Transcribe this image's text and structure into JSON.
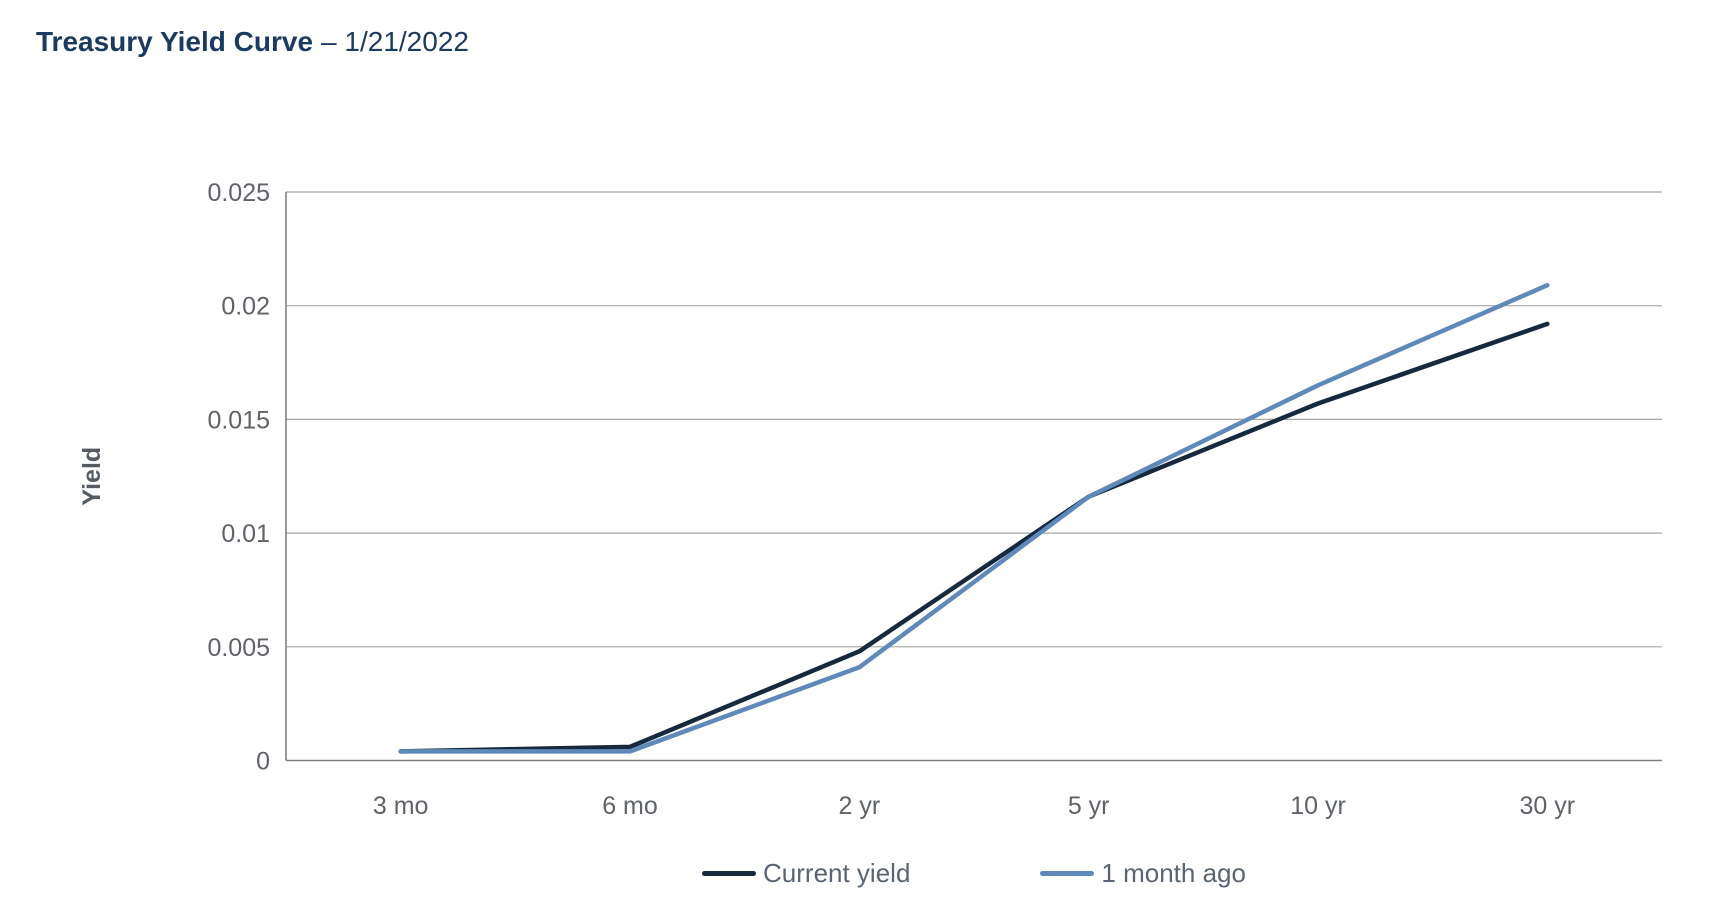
{
  "title": {
    "main": "Treasury Yield Curve",
    "suffix": "– 1/21/2022"
  },
  "colors": {
    "title_text": "#1b3a5f",
    "tick_text": "#5f6368",
    "axis_title_text": "#555b63",
    "legend_text": "#5a6472",
    "gridline": "#a6a6a6",
    "axis_line": "#808080",
    "background": "#ffffff",
    "series_current": "#17293e",
    "series_month_ago": "#5e89b8"
  },
  "chart_data": {
    "type": "line",
    "title": "Treasury Yield Curve – 1/21/2022",
    "categories": [
      "3 mo",
      "6 mo",
      "2 yr",
      "5 yr",
      "10 yr",
      "30 yr"
    ],
    "series": [
      {
        "name": "Current yield",
        "color": "#17293e",
        "values": [
          0.0004,
          0.0006,
          0.0048,
          0.0116,
          0.0157,
          0.0192
        ]
      },
      {
        "name": "1 month ago",
        "color": "#5e89b8",
        "values": [
          0.0004,
          0.0004,
          0.0041,
          0.0116,
          0.0165,
          0.0209
        ]
      }
    ],
    "xlabel": "",
    "ylabel": "Yield",
    "ylim": [
      0,
      0.025
    ],
    "yticks": [
      0,
      0.005,
      0.01,
      0.015,
      0.02,
      0.025
    ],
    "ytick_labels": [
      "0",
      "0.005",
      "0.01",
      "0.015",
      "0.02",
      "0.025"
    ],
    "grid": true,
    "legend_position": "bottom"
  }
}
